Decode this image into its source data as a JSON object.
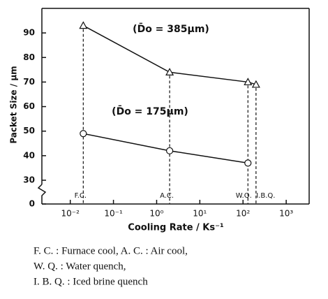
{
  "chart_data": {
    "type": "line",
    "x": [
      0.02,
      2,
      130,
      200
    ],
    "x_categories": [
      "F.C.",
      "A.C.",
      "W.Q.",
      "I.B.Q."
    ],
    "series": [
      {
        "name": "(D̄o = 385µm)",
        "color": "#111111",
        "marker": "triangle",
        "values": [
          93,
          74,
          70,
          69
        ]
      },
      {
        "name": "(D̄o = 175µm)",
        "color": "#111111",
        "marker": "circle",
        "values": [
          49,
          42,
          37,
          null
        ]
      }
    ],
    "xlabel": "Cooling Rate / Ks⁻¹",
    "ylabel": "Packet Size / µm",
    "xscale": "log",
    "xlim": [
      0.0022,
      3400
    ],
    "xticks": [
      {
        "value": 0.01,
        "label": "10⁻²"
      },
      {
        "value": 0.1,
        "label": "10⁻¹"
      },
      {
        "value": 1,
        "label": "10⁰"
      },
      {
        "value": 10,
        "label": "10¹"
      },
      {
        "value": 100,
        "label": "10²"
      },
      {
        "value": 1000,
        "label": "10³"
      }
    ],
    "ylim": [
      0,
      100
    ],
    "yticks": [
      0,
      30,
      40,
      50,
      60,
      70,
      80,
      90
    ],
    "y_break": true,
    "caption": [
      "F. C. : Furnace cool,  A. C. : Air cool,",
      "W. Q. : Water quench,",
      "I. B. Q. : Iced brine quench"
    ]
  }
}
